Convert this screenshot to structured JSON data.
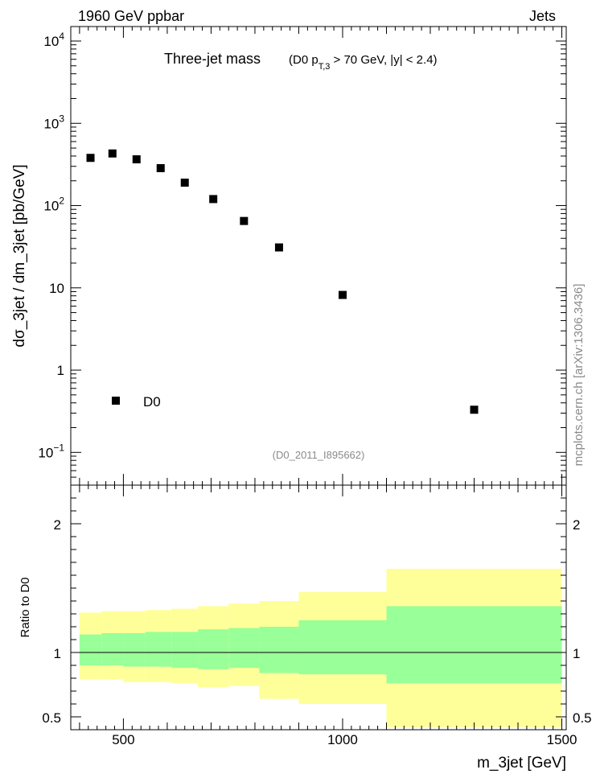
{
  "header": {
    "left": "1960 GeV ppbar",
    "right": "Jets"
  },
  "watermark": "mcplots.cern.ch [arXiv:1306.3436]",
  "colors": {
    "inner_band": "#99ff99",
    "outer_band": "#ffff99",
    "marker": "#000000",
    "muted": "#8a8a8a"
  },
  "chart_data": [
    {
      "panel": "main",
      "type": "scatter",
      "title_main": "Three-jet mass",
      "title_cond_a": "(D0 p",
      "title_cond_sub": "T,3",
      "title_cond_b": " > 70 GeV, |y| < 2.4)",
      "ylabel": "dσ_3jet / dm_3jet [pb/GeV]",
      "yscale": "log",
      "ylim": [
        0.04,
        15000
      ],
      "xlim": [
        380,
        1510
      ],
      "yticks": [
        {
          "value": 0.1,
          "base": "10",
          "exp": "−1"
        },
        {
          "value": 1,
          "base": "1",
          "exp": ""
        },
        {
          "value": 10,
          "base": "10",
          "exp": ""
        },
        {
          "value": 100,
          "base": "10",
          "exp": "2"
        },
        {
          "value": 1000,
          "base": "10",
          "exp": "3"
        },
        {
          "value": 10000,
          "base": "10",
          "exp": "4"
        }
      ],
      "series": [
        {
          "name": "D0",
          "x": [
            425,
            475,
            530,
            585,
            640,
            705,
            775,
            855,
            1000,
            1300
          ],
          "y": [
            380,
            430,
            365,
            285,
            190,
            120,
            65,
            31,
            8.2,
            0.33
          ]
        }
      ],
      "legend": {
        "label": "D0",
        "placement": "bottom-left"
      },
      "analysis_tag": "(D0_2011_I895662)"
    },
    {
      "panel": "ratio",
      "type": "area",
      "ylabel": "Ratio to D0",
      "xlabel": "m_3jet [GeV]",
      "ylim": [
        0.4,
        2.3
      ],
      "yticks": [
        0.5,
        1,
        2
      ],
      "yticklabels": [
        "0.5",
        "1",
        "2"
      ],
      "xticks": [
        500,
        1000,
        1500
      ],
      "xticklabels": [
        "500",
        "1000",
        "1500"
      ],
      "reference": 1.0,
      "bins": [
        {
          "x0": 400,
          "x1": 450,
          "inner": [
            0.9,
            1.14
          ],
          "outer": [
            0.79,
            1.31
          ]
        },
        {
          "x0": 450,
          "x1": 500,
          "inner": [
            0.9,
            1.15
          ],
          "outer": [
            0.79,
            1.32
          ]
        },
        {
          "x0": 500,
          "x1": 550,
          "inner": [
            0.89,
            1.15
          ],
          "outer": [
            0.77,
            1.32
          ]
        },
        {
          "x0": 550,
          "x1": 610,
          "inner": [
            0.89,
            1.16
          ],
          "outer": [
            0.77,
            1.33
          ]
        },
        {
          "x0": 610,
          "x1": 670,
          "inner": [
            0.88,
            1.16
          ],
          "outer": [
            0.76,
            1.34
          ]
        },
        {
          "x0": 670,
          "x1": 740,
          "inner": [
            0.87,
            1.18
          ],
          "outer": [
            0.73,
            1.36
          ]
        },
        {
          "x0": 740,
          "x1": 810,
          "inner": [
            0.88,
            1.19
          ],
          "outer": [
            0.74,
            1.38
          ]
        },
        {
          "x0": 810,
          "x1": 900,
          "inner": [
            0.84,
            1.2
          ],
          "outer": [
            0.64,
            1.4
          ]
        },
        {
          "x0": 900,
          "x1": 1100,
          "inner": [
            0.83,
            1.25
          ],
          "outer": [
            0.6,
            1.47
          ]
        },
        {
          "x0": 1100,
          "x1": 1500,
          "inner": [
            0.76,
            1.36
          ],
          "outer": [
            0.42,
            1.65
          ]
        }
      ]
    }
  ]
}
